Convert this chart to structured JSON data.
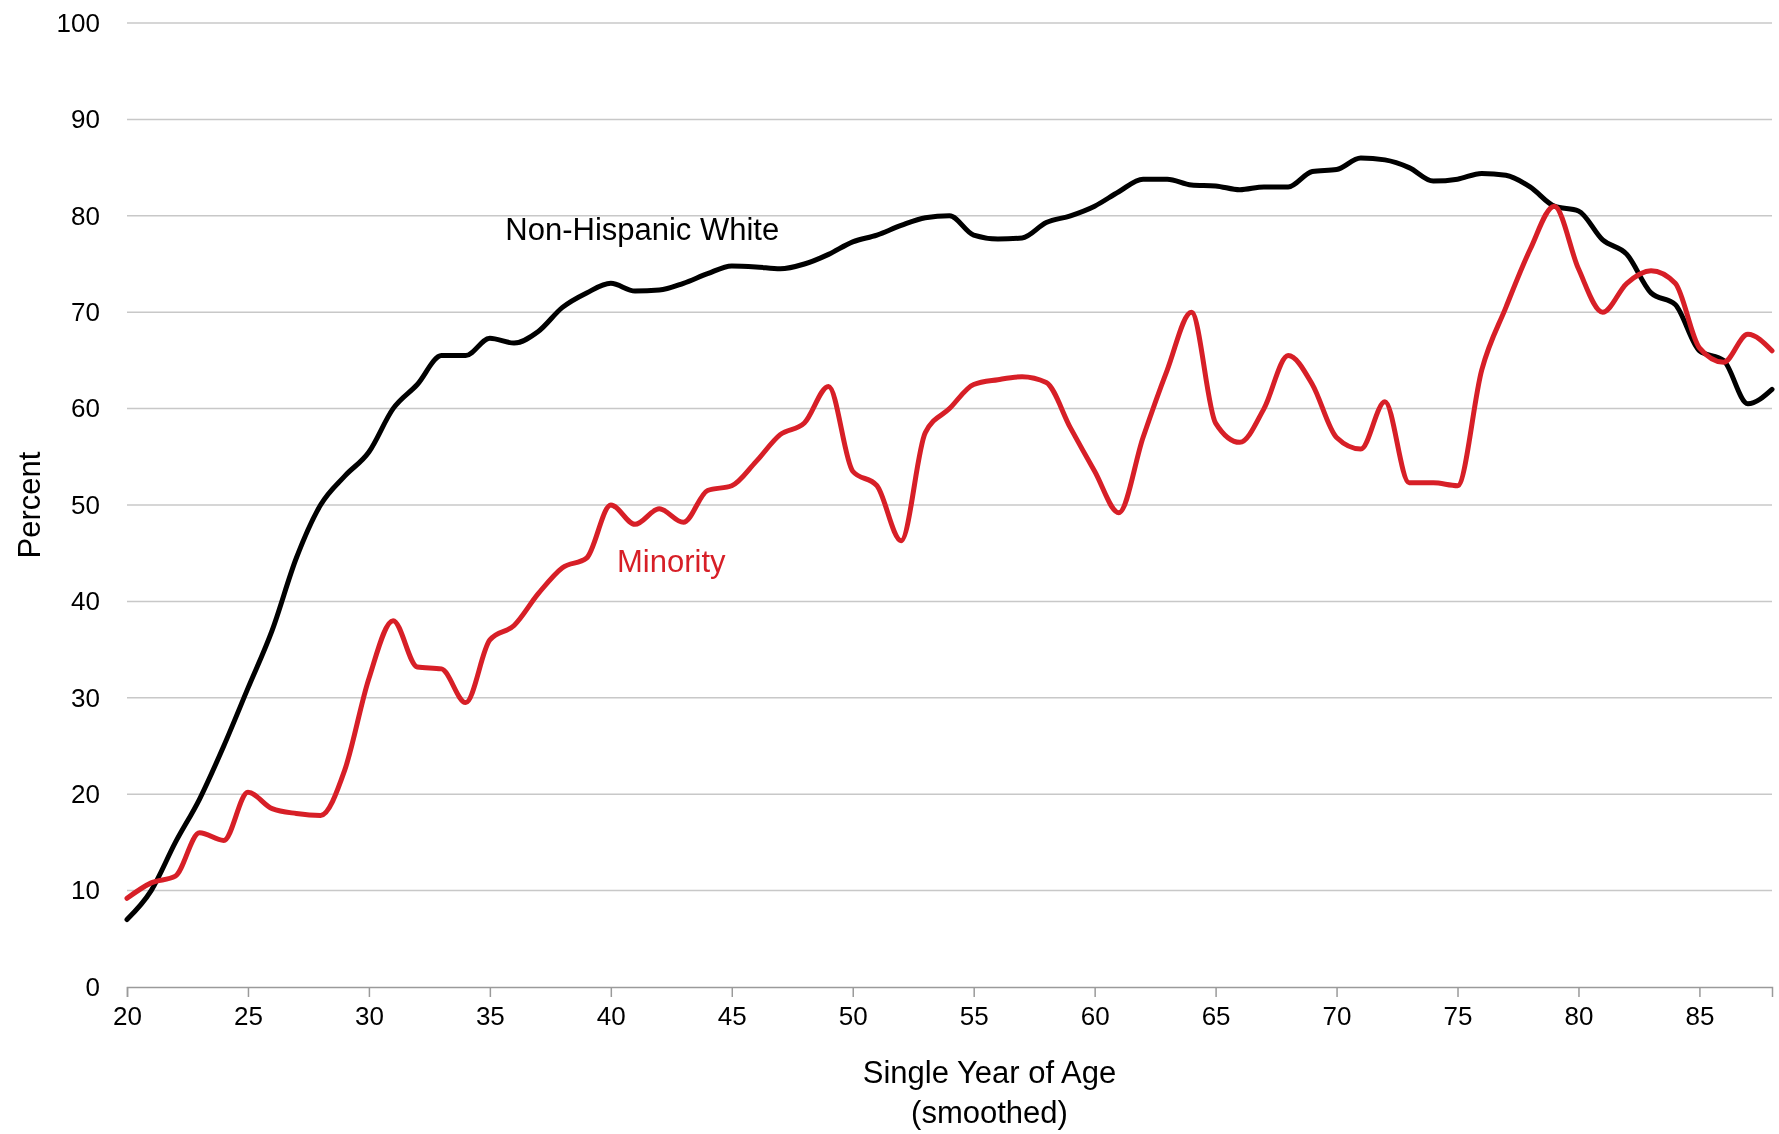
{
  "chart_data": {
    "type": "line",
    "xlabel": "Single Year of Age\n(smoothed)",
    "ylabel": "Percent",
    "x": [
      20,
      21,
      22,
      23,
      24,
      25,
      26,
      27,
      28,
      29,
      30,
      31,
      32,
      33,
      34,
      35,
      36,
      37,
      38,
      39,
      40,
      41,
      42,
      43,
      44,
      45,
      46,
      47,
      48,
      49,
      50,
      51,
      52,
      53,
      54,
      55,
      56,
      57,
      58,
      59,
      60,
      61,
      62,
      63,
      64,
      65,
      66,
      67,
      68,
      69,
      70,
      71,
      72,
      73,
      74,
      75,
      76,
      77,
      78,
      79,
      80,
      81,
      82,
      83,
      84,
      85,
      86,
      87,
      88
    ],
    "series": [
      {
        "name": "Non-Hispanic White",
        "color": "#000000",
        "values": [
          7,
          10,
          15,
          19.5,
          25,
          31,
          37,
          44.5,
          50,
          53,
          55.5,
          60,
          62.5,
          65.5,
          65.5,
          67.3,
          66.8,
          68,
          70.5,
          72,
          73,
          72.2,
          72.3,
          73,
          74,
          74.8,
          74.7,
          74.5,
          75,
          76,
          77.3,
          78,
          79,
          79.8,
          80,
          78,
          77.6,
          77.7,
          79.3,
          80,
          81,
          82.5,
          83.8,
          83.8,
          83.2,
          83.1,
          82.7,
          83,
          83,
          84.6,
          84.8,
          86,
          85.8,
          85,
          83.6,
          83.8,
          84.4,
          84.2,
          83,
          81,
          80.5,
          77.5,
          76,
          72,
          70.8,
          66,
          65,
          60.5,
          62
        ]
      },
      {
        "name": "Minority",
        "color": "#d71f27",
        "values": [
          9.2,
          10.8,
          11.5,
          16,
          15.2,
          20.2,
          18.5,
          18,
          17.8,
          22.5,
          32,
          38,
          33.2,
          33,
          29.5,
          36,
          37.5,
          40.8,
          43.5,
          44.5,
          50,
          48,
          49.6,
          48.2,
          51.5,
          52,
          54.5,
          57.3,
          58.5,
          62.3,
          53.5,
          52,
          46.3,
          57.5,
          60,
          62.5,
          63,
          63.3,
          62.7,
          58,
          53.5,
          49.2,
          57,
          64,
          70,
          58.5,
          56.5,
          60,
          65.5,
          62.5,
          57,
          55.8,
          60.7,
          52.3,
          52.3,
          52,
          64,
          70.5,
          76.5,
          81,
          74.5,
          70,
          73,
          74.3,
          73,
          66.3,
          64.8,
          67.7,
          66
        ]
      }
    ],
    "xlim": [
      20,
      88
    ],
    "xticks": [
      20,
      25,
      30,
      35,
      40,
      45,
      50,
      55,
      60,
      65,
      70,
      75,
      80,
      85
    ],
    "ylim": [
      0,
      100
    ],
    "yticks": [
      0,
      10,
      20,
      30,
      40,
      50,
      60,
      70,
      80,
      90,
      100
    ],
    "grid": "y",
    "legend": false,
    "marker": "none",
    "line_style": "solid"
  }
}
